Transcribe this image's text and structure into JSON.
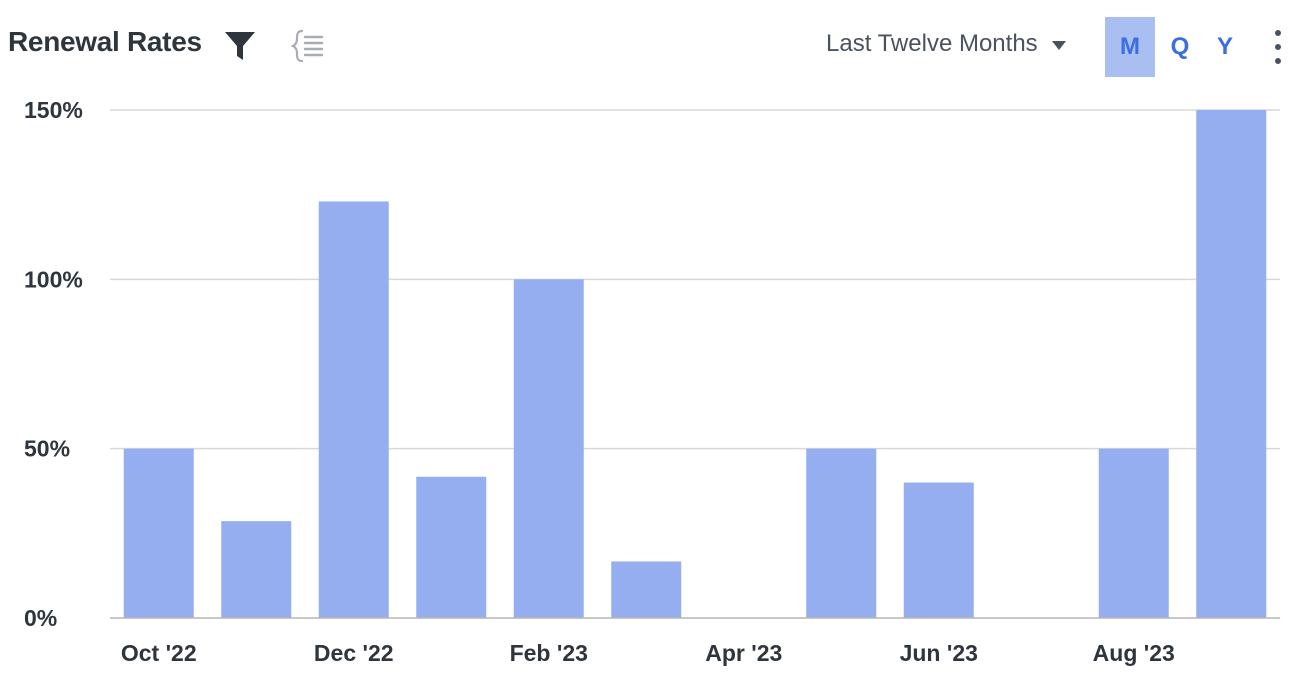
{
  "header": {
    "title": "Renewal Rates",
    "range_label": "Last Twelve Months",
    "period_buttons": [
      "M",
      "Q",
      "Y"
    ],
    "active_period": "M"
  },
  "colors": {
    "bar": "#94aef0",
    "grid": "#d9d9d9",
    "axis": "#b5b5b5",
    "accent": "#3b6fe0",
    "active_bg": "#a9bff2",
    "text": "#2f353d"
  },
  "chart_data": {
    "type": "bar",
    "title": "Renewal Rates",
    "categories": [
      "Oct '22",
      "Nov '22",
      "Dec '22",
      "Jan '23",
      "Feb '23",
      "Mar '23",
      "Apr '23",
      "May '23",
      "Jun '23",
      "Jul '23",
      "Aug '23",
      "Sep '23"
    ],
    "x_tick_labels": [
      "Oct '22",
      "Dec '22",
      "Feb '23",
      "Apr '23",
      "Jun '23",
      "Aug '23"
    ],
    "values": [
      50,
      28.6,
      123,
      41.7,
      100,
      16.7,
      0,
      50,
      40,
      0,
      50,
      150
    ],
    "ylim": [
      0,
      150
    ],
    "y_ticks": [
      0,
      50,
      100,
      150
    ],
    "y_tick_labels": [
      "0%",
      "50%",
      "100%",
      "150%"
    ],
    "xlabel": "",
    "ylabel": "",
    "grid": true,
    "legend": false
  }
}
